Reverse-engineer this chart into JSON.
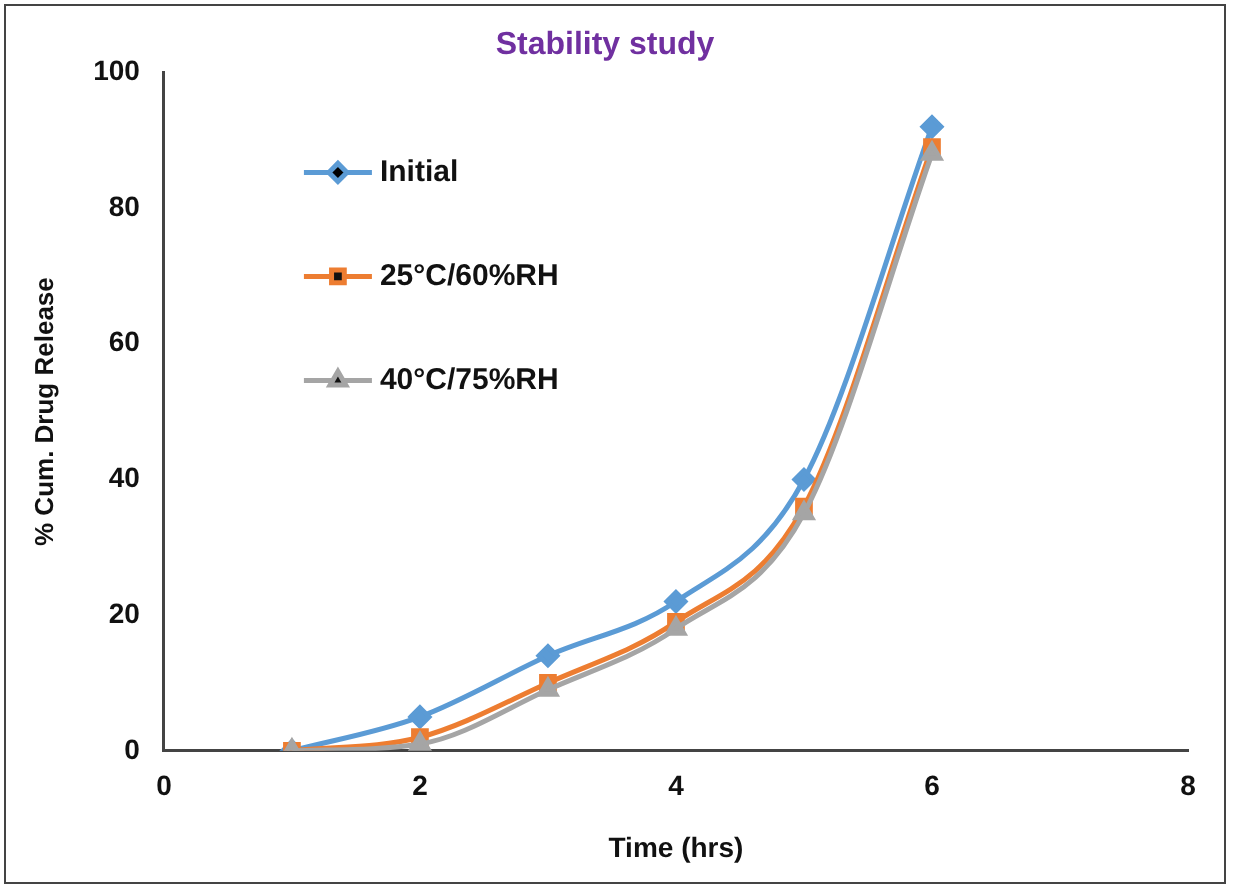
{
  "chart_data": {
    "type": "line",
    "title": "Stability study",
    "xlabel": "Time (hrs)",
    "ylabel": "% Cum. Drug Release",
    "x": [
      1,
      2,
      3,
      4,
      5,
      6
    ],
    "series": [
      {
        "name": "Initial",
        "color": "#5b9bd5",
        "marker": "diamond",
        "values": [
          0,
          5,
          14,
          22,
          40,
          92
        ]
      },
      {
        "name": "25°C/60%RH",
        "color": "#ed7d31",
        "marker": "square",
        "values": [
          0,
          2,
          10,
          19,
          36,
          89
        ]
      },
      {
        "name": "40°C/75%RH",
        "color": "#a5a5a5",
        "marker": "triangle",
        "values": [
          0,
          1,
          9,
          18,
          35,
          88
        ]
      }
    ],
    "xlim": [
      0,
      8
    ],
    "xticks": [
      0,
      2,
      4,
      6,
      8
    ],
    "ylim": [
      0,
      100
    ],
    "yticks": [
      0,
      20,
      40,
      60,
      80,
      100
    ],
    "grid": false,
    "legend": "top left"
  }
}
